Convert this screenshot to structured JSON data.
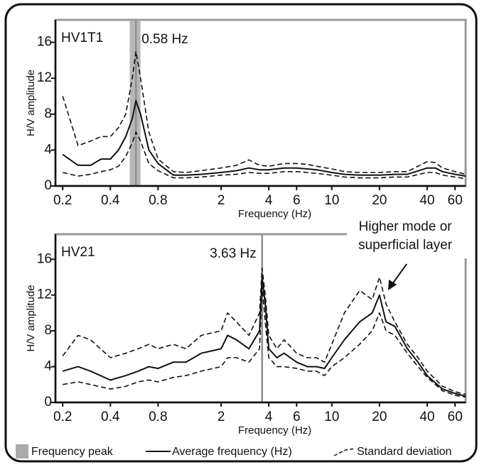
{
  "chart_data": [
    {
      "type": "line",
      "label": "HV1T1",
      "xlabel": "Frequency (Hz)",
      "ylabel": "H/V amplitude",
      "x_log": true,
      "xlim": [
        0.18,
        70
      ],
      "ylim": [
        0,
        18.5
      ],
      "xticks": [
        0.2,
        0.4,
        0.8,
        2,
        4,
        6,
        10,
        20,
        40,
        60
      ],
      "yticks": [
        0,
        4,
        8,
        12,
        16
      ],
      "x": [
        0.2,
        0.25,
        0.3,
        0.35,
        0.4,
        0.45,
        0.5,
        0.55,
        0.58,
        0.62,
        0.7,
        0.8,
        1,
        1.2,
        1.5,
        2,
        2.5,
        3,
        3.5,
        4,
        5,
        6,
        7,
        8,
        10,
        12,
        15,
        20,
        25,
        30,
        40,
        45,
        50,
        60,
        70
      ],
      "peak": 0.58,
      "peak_band": [
        0.53,
        0.62
      ],
      "peak_label": "0.58 Hz",
      "peak_color": "#aaaaaa",
      "series": [
        {
          "style": "solid",
          "color": "#111111",
          "values": [
            3.5,
            2.3,
            2.3,
            3,
            3,
            4,
            5.5,
            7.5,
            9.5,
            8,
            4,
            2.5,
            1.2,
            1.2,
            1.3,
            1.5,
            1.7,
            2,
            1.8,
            1.8,
            2,
            2,
            1.9,
            1.8,
            1.5,
            1.3,
            1.2,
            1.2,
            1.3,
            1.3,
            2,
            2,
            1.6,
            1.3,
            1.1
          ]
        },
        {
          "style": "dashed",
          "color": "#111111",
          "values": [
            10,
            4.5,
            5,
            5.5,
            5.5,
            6.5,
            8,
            12,
            15,
            12,
            6,
            3,
            1.6,
            1.5,
            1.7,
            2,
            2.3,
            2.9,
            2.3,
            2.2,
            2.5,
            2.5,
            2.4,
            2.2,
            1.9,
            1.6,
            1.5,
            1.5,
            1.6,
            1.6,
            2.7,
            2.6,
            2,
            1.6,
            1.3
          ]
        },
        {
          "style": "dashed",
          "color": "#111111",
          "values": [
            1.5,
            1.1,
            1.3,
            1.6,
            1.8,
            2.2,
            3.3,
            4.8,
            6,
            5,
            2.5,
            1.7,
            0.9,
            0.9,
            1,
            1.2,
            1.3,
            1.5,
            1.4,
            1.4,
            1.6,
            1.6,
            1.5,
            1.4,
            1.2,
            1,
            0.9,
            0.9,
            1,
            1,
            1.5,
            1.5,
            1.2,
            1,
            0.8
          ]
        }
      ]
    },
    {
      "type": "line",
      "label": "HV21",
      "xlabel": "Frequency (Hz)",
      "ylabel": "H/V amplitude",
      "x_log": true,
      "xlim": [
        0.18,
        70
      ],
      "ylim": [
        0,
        18.8
      ],
      "xticks": [
        0.2,
        0.4,
        0.8,
        2,
        4,
        6,
        10,
        20,
        40,
        60
      ],
      "yticks": [
        0,
        4,
        8,
        12,
        16
      ],
      "x": [
        0.2,
        0.25,
        0.3,
        0.4,
        0.5,
        0.6,
        0.7,
        0.8,
        1,
        1.2,
        1.5,
        2,
        2.2,
        2.5,
        3,
        3.5,
        3.63,
        3.8,
        4,
        4.5,
        5,
        6,
        7,
        8,
        9,
        10,
        12,
        15,
        18,
        20,
        22,
        25,
        30,
        35,
        40,
        50,
        60,
        70
      ],
      "peak": 3.63,
      "peak_band": [
        3.58,
        3.68
      ],
      "peak_label": "3.63 Hz",
      "peak_color": "#aaaaaa",
      "annotation": [
        "Higher mode or",
        "superficial layer"
      ],
      "series": [
        {
          "style": "solid",
          "color": "#111111",
          "values": [
            3.5,
            4,
            3.5,
            2.5,
            3,
            3.5,
            4,
            3.8,
            4.5,
            4.5,
            5.5,
            6,
            7.5,
            7,
            6,
            8,
            14,
            11,
            6,
            5,
            5.5,
            4.5,
            4,
            4,
            3.8,
            5,
            7,
            9,
            10,
            12,
            9,
            8.5,
            6,
            4.5,
            3,
            1.5,
            1,
            0.7
          ]
        },
        {
          "style": "dashed",
          "color": "#111111",
          "values": [
            5.2,
            7.5,
            7,
            5,
            5.5,
            6,
            6.5,
            6,
            6.5,
            6,
            7.5,
            8,
            10,
            9,
            7.5,
            10,
            15,
            12,
            7.5,
            6,
            7,
            5.5,
            5,
            5,
            4.5,
            6.5,
            10,
            12.5,
            11.5,
            14,
            11,
            9,
            6.5,
            5,
            3.5,
            1.8,
            1.2,
            0.9
          ]
        },
        {
          "style": "dashed",
          "color": "#111111",
          "values": [
            2,
            2.3,
            2,
            1.5,
            1.8,
            2.3,
            2.5,
            2.3,
            2.8,
            3,
            3.5,
            4,
            5,
            5,
            4.5,
            6,
            13,
            9,
            5,
            4,
            4,
            3.8,
            3.5,
            3.5,
            3,
            4,
            5,
            6.5,
            8,
            10,
            8,
            7.5,
            5.5,
            4,
            2.8,
            1.3,
            0.8,
            0.6
          ]
        }
      ]
    }
  ],
  "legend": [
    "Frequency peak",
    "Average frequency (Hz)",
    "Standard deviation"
  ]
}
